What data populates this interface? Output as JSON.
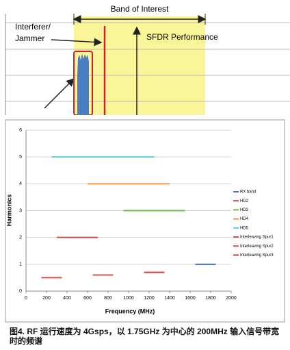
{
  "diagram": {
    "band_label": "Band of Interest",
    "interferer_label": [
      "Interferer/",
      "Jammer"
    ],
    "sfdr_label": "SFDR Performance"
  },
  "chart_data": {
    "type": "line",
    "xlabel": "Frequency (MHz)",
    "ylabel": "Harmonics",
    "xlim": [
      0,
      2000
    ],
    "xticks": [
      0,
      200,
      400,
      600,
      800,
      1000,
      1200,
      1400,
      1600,
      1800,
      2000
    ],
    "ylim": [
      0,
      6
    ],
    "yticks": [
      0,
      1,
      2,
      3,
      4,
      5,
      6
    ],
    "grid": true,
    "legend": "right",
    "series": [
      {
        "name": "RX band",
        "color": "#4472c4",
        "x": [
          1650,
          1850
        ],
        "values": [
          1,
          1
        ]
      },
      {
        "name": "HD2",
        "color": "#c0504d",
        "x": [
          300,
          700
        ],
        "values": [
          2,
          2
        ]
      },
      {
        "name": "HD3",
        "color": "#6abf47",
        "x": [
          950,
          1550
        ],
        "values": [
          3,
          3
        ]
      },
      {
        "name": "HD4",
        "color": "#f79646",
        "x": [
          600,
          1400
        ],
        "values": [
          4,
          4
        ]
      },
      {
        "name": "HD5",
        "color": "#5bc8e8",
        "x": [
          250,
          1250
        ],
        "values": [
          5,
          5
        ]
      },
      {
        "name": "Interleaving Spur1",
        "color": "#e04a4a",
        "x": [
          150,
          350
        ],
        "values": [
          0.5,
          0.5
        ]
      },
      {
        "name": "Interleaving Spur2",
        "color": "#d85050",
        "x": [
          650,
          850
        ],
        "values": [
          0.6,
          0.6
        ]
      },
      {
        "name": "Interleaving Spur3",
        "color": "#e03838",
        "x": [
          1150,
          1350
        ],
        "values": [
          0.7,
          0.7
        ]
      }
    ]
  },
  "caption": "图4. RF 运行速度为 4Gsps，以 1.75GHz 为中心的 200MHz 输入信号带宽时的频谱"
}
